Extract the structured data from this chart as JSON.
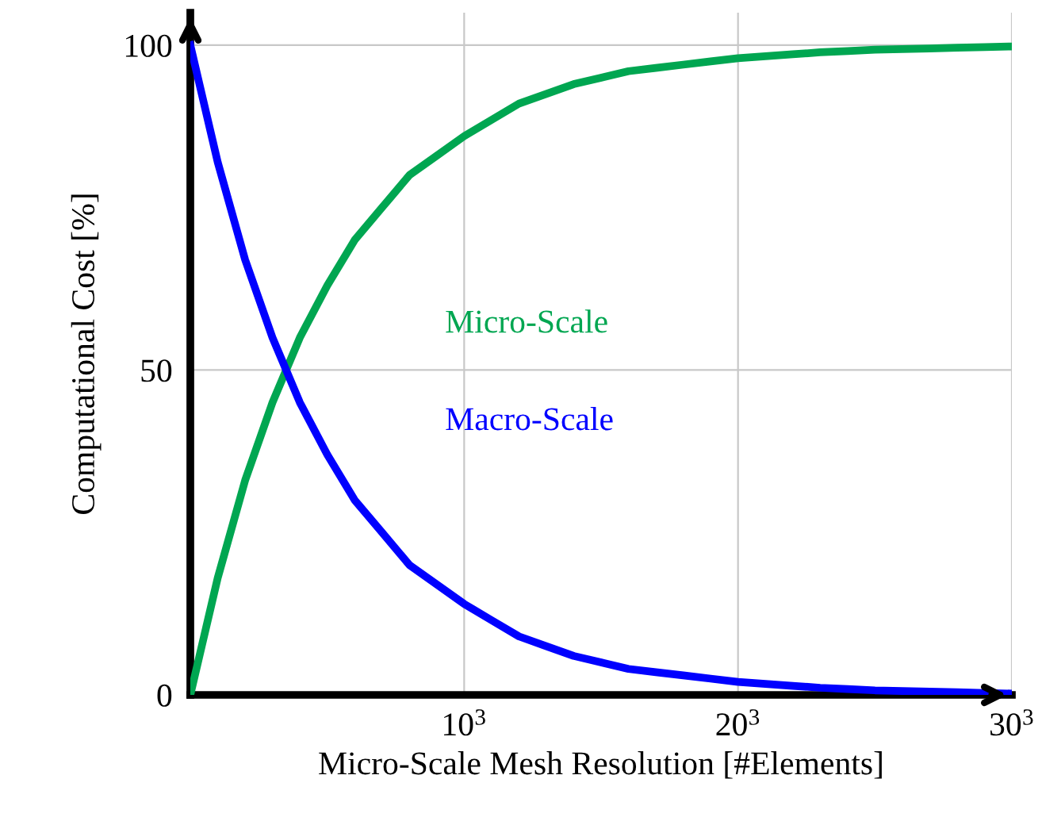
{
  "chart_data": {
    "type": "line",
    "xlabel": "Micro-Scale Mesh Resolution [#Elements]",
    "ylabel": "Computational Cost [%]",
    "categories": [
      null,
      null,
      null,
      null,
      null,
      null,
      null,
      null,
      null,
      null,
      "10$^{3}$",
      null,
      null,
      null,
      null,
      null,
      null,
      null,
      null,
      null,
      "20$^{3}$",
      null,
      null,
      null,
      null,
      null,
      null,
      null,
      null,
      null,
      "30$^{3}$"
    ],
    "series": [
      {
        "name": "Micro-Scale",
        "color": "#00a651",
        "values": [
          0,
          18,
          33,
          45,
          55,
          63,
          70,
          75,
          80,
          83,
          86,
          88.5,
          91,
          92.5,
          94,
          95,
          96,
          96.5,
          97,
          97.5,
          98,
          98.3,
          98.6,
          98.9,
          99.1,
          99.3,
          99.4,
          99.5,
          99.6,
          99.7,
          99.8
        ]
      },
      {
        "name": "Macro-Scale",
        "color": "#0000ff",
        "values": [
          100,
          82,
          67,
          55,
          45,
          37,
          30,
          25,
          20,
          17,
          14,
          11.5,
          9,
          7.5,
          6,
          5,
          4,
          3.5,
          3,
          2.5,
          2,
          1.7,
          1.4,
          1.1,
          0.9,
          0.7,
          0.6,
          0.5,
          0.4,
          0.3,
          0.2
        ]
      }
    ],
    "ylim": [
      0,
      105
    ],
    "yticks": [
      0,
      50,
      100
    ],
    "grid": true,
    "legend": false,
    "marker": "none",
    "line_style": "solid"
  }
}
